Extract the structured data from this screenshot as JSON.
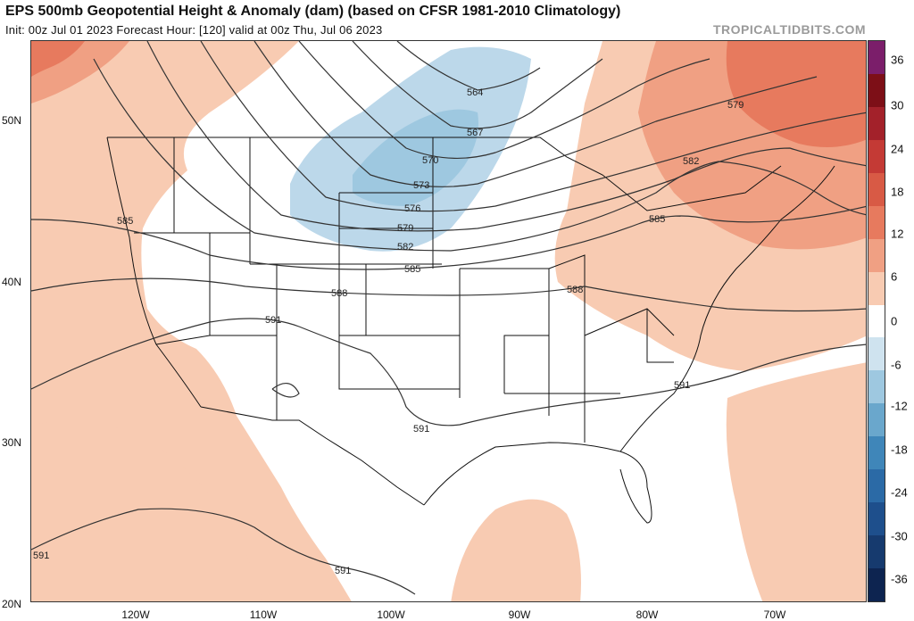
{
  "header": {
    "title": "EPS 500mb Geopotential Height & Anomaly (dam) (based on CFSR 1981-2010 Climatology)",
    "subtitle": "Init: 00z Jul 01 2023   Forecast Hour: [120]   valid at 00z Thu, Jul 06 2023",
    "credit": "TROPICALTIDBITS.COM"
  },
  "axes": {
    "latitudes": [
      "50N",
      "40N",
      "30N",
      "20N"
    ],
    "longitudes": [
      "120W",
      "110W",
      "100W",
      "90W",
      "80W",
      "70W"
    ]
  },
  "colorbar": {
    "ticks": [
      "36",
      "30",
      "24",
      "18",
      "12",
      "6",
      "0",
      "-6",
      "-12",
      "-18",
      "-24",
      "-30",
      "-36"
    ],
    "colors": [
      "#7b1e6a",
      "#7d0f17",
      "#a3212a",
      "#c43a35",
      "#d85a45",
      "#e77a5e",
      "#f0a083",
      "#f8cbb2",
      "#ffffff",
      "#cfe3ef",
      "#9ec8e0",
      "#6aa7cc",
      "#3f86b9",
      "#2b6aa6",
      "#1e4f8c",
      "#163a6e",
      "#0d2450"
    ]
  },
  "contours": {
    "labels": [
      "564",
      "567",
      "570",
      "573",
      "576",
      "579",
      "582",
      "585",
      "588",
      "591",
      "591",
      "591",
      "591",
      "579",
      "582",
      "585",
      "588",
      "585"
    ]
  },
  "colors": {
    "warm_light": "#f8cbb2",
    "warm_mid": "#f0a083",
    "warm_strong": "#e77a5e",
    "cool_light": "#bcd8ea",
    "cool_mid": "#9ec8e0"
  }
}
